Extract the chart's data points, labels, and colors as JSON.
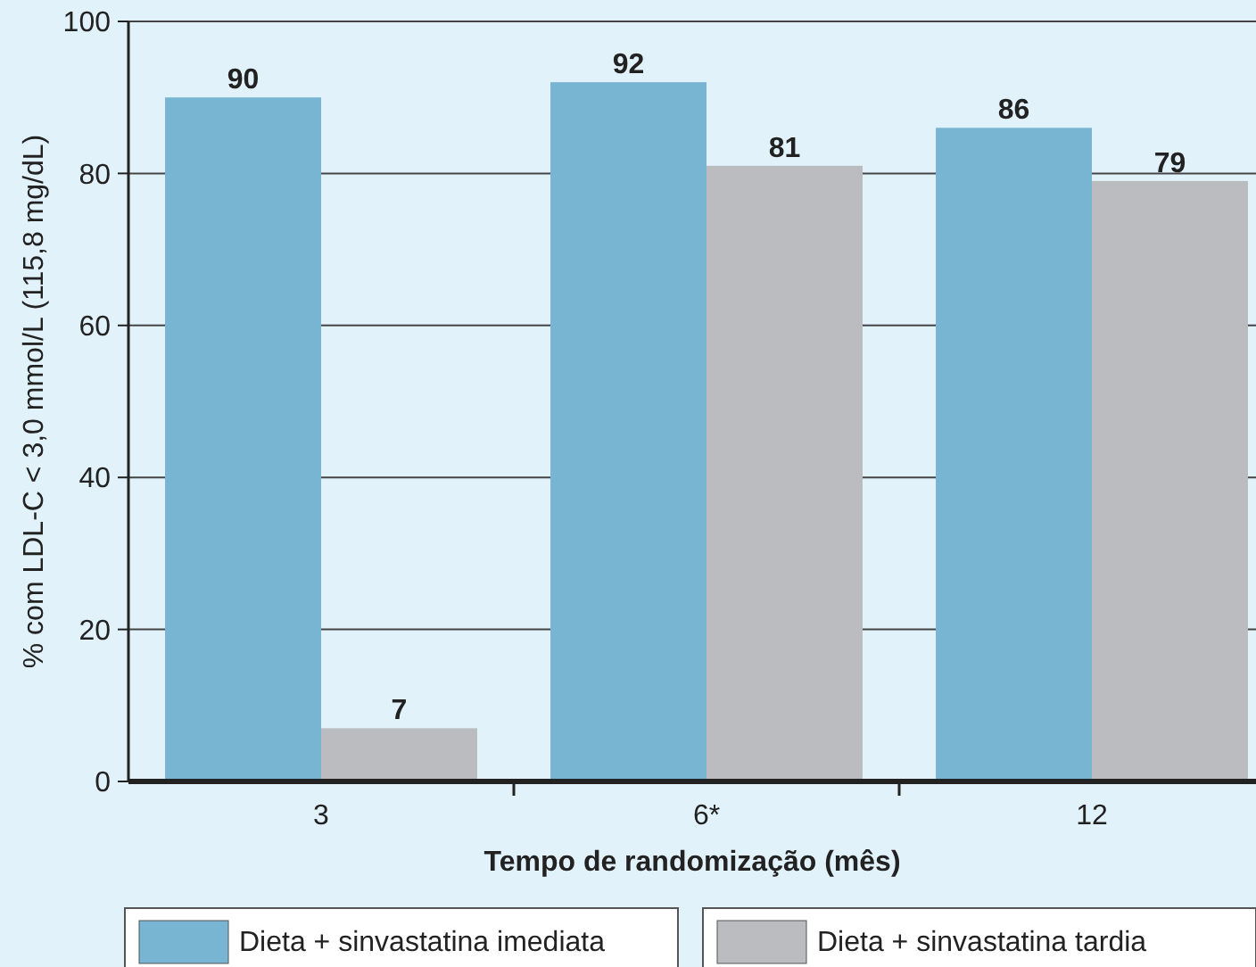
{
  "chart_data": {
    "type": "bar",
    "xlabel": "Tempo de randomização (mês)",
    "ylabel": "% com LDL-C < 3,0 mmol/L (115,8 mg/dL)",
    "categories": [
      "3",
      "6*",
      "12"
    ],
    "series": [
      {
        "name": "Dieta + sinvastatina imediata",
        "color": "#77b5d3",
        "values": [
          90,
          92,
          86
        ]
      },
      {
        "name": "Dieta + sinvastatina tardia",
        "color": "#bbbcbf",
        "values": [
          7,
          81,
          79
        ]
      }
    ],
    "ylim": [
      0,
      100
    ],
    "yticks": [
      0,
      20,
      40,
      60,
      80,
      100
    ],
    "grid": "y",
    "data_labels": true,
    "legend": "bottom"
  }
}
